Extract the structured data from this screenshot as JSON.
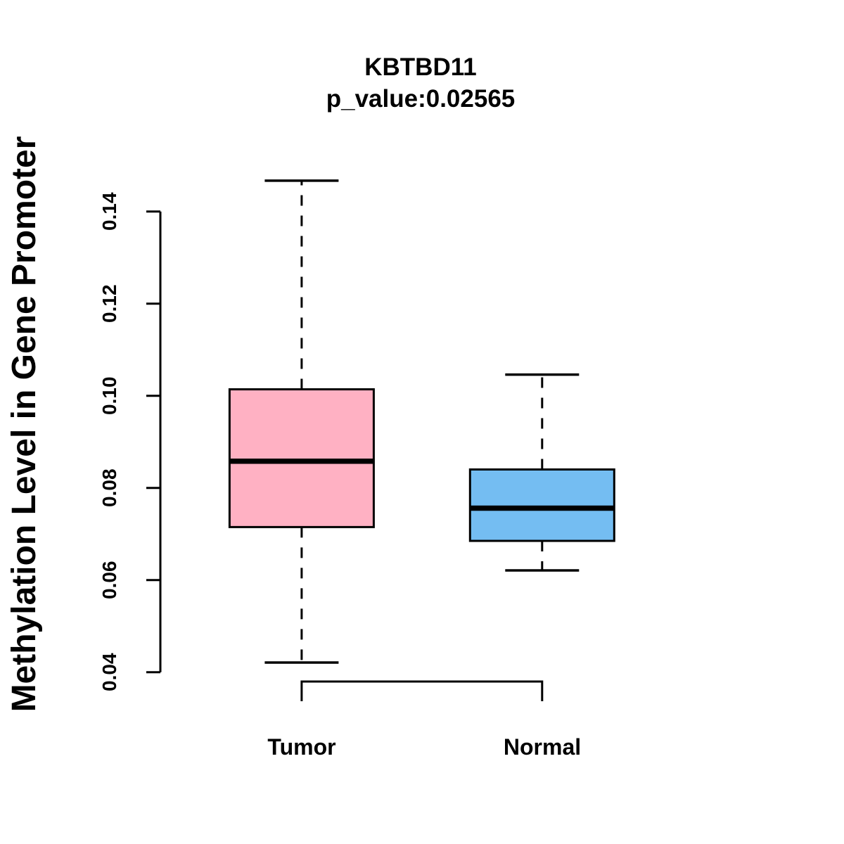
{
  "chart_data": {
    "type": "boxplot",
    "title": "KBTBD11",
    "subtitle": "p_value:0.02565",
    "ylabel": "Methylation Level in Gene Promoter",
    "xlabel": "",
    "categories": [
      "Tumor",
      "Normal"
    ],
    "yticks": [
      "0.04",
      "0.06",
      "0.08",
      "0.10",
      "0.12",
      "0.14"
    ],
    "ylim": [
      0.04,
      0.14
    ],
    "grid": false,
    "legend": "none",
    "background": "#FFFFFF",
    "stroke_color": "#000000",
    "series": [
      {
        "name": "Tumor",
        "fill": "#FFB1C3",
        "whisker_low": 0.0421,
        "q1": 0.0715,
        "median": 0.0858,
        "q3": 0.1014,
        "whisker_high": 0.1467
      },
      {
        "name": "Normal",
        "fill": "#74BDF2",
        "whisker_low": 0.0621,
        "q1": 0.0685,
        "median": 0.0756,
        "q3": 0.084,
        "whisker_high": 0.1046
      }
    ]
  }
}
